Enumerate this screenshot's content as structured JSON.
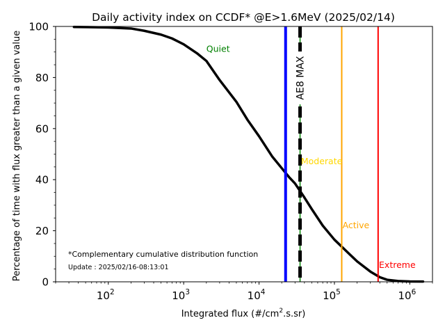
{
  "chart_data": {
    "type": "line",
    "title": "Daily activity index on CCDF* @E>1.6MeV (2025/02/14)",
    "xlabel_main": "Integrated flux (#/cm",
    "xlabel_sup": "2",
    "xlabel_tail": ".s.sr)",
    "ylabel": "Percentage of time with flux greater than a given value",
    "xscale": "log",
    "xlim": [
      20,
      2000000
    ],
    "ylim": [
      0,
      100
    ],
    "yticks": [
      0,
      20,
      40,
      60,
      80,
      100
    ],
    "ytick_labels": [
      "0",
      "20",
      "40",
      "60",
      "80",
      "100"
    ],
    "xticks": [
      100,
      1000,
      10000,
      100000,
      1000000
    ],
    "xtick_bases": [
      "10",
      "10",
      "10",
      "10",
      "10"
    ],
    "xtick_exps": [
      "2",
      "3",
      "4",
      "5",
      "6"
    ],
    "grid": false,
    "series": [
      {
        "name": "CCDF",
        "color": "#000000",
        "x": [
          35,
          100,
          200,
          300,
          500,
          700,
          1000,
          1500,
          2000,
          3000,
          5000,
          7000,
          10000,
          15000,
          20000,
          25000,
          30000,
          40000,
          50000,
          70000,
          100000,
          150000,
          200000,
          300000,
          400000,
          500000,
          700000,
          1000000,
          1500000
        ],
        "y": [
          99.8,
          99.6,
          99.2,
          98.3,
          96.8,
          95.3,
          93.0,
          89.5,
          86.5,
          79.0,
          70.5,
          63.5,
          57.0,
          49.0,
          44.5,
          41.0,
          38.5,
          33.0,
          28.5,
          22.0,
          16.5,
          11.5,
          8.0,
          4.0,
          1.8,
          0.8,
          0.3,
          0.15,
          0.1
        ]
      }
    ],
    "vlines": [
      {
        "name": "daily-flux",
        "x": 22500,
        "color": "#0000ff",
        "style": "solid",
        "width": "thick"
      },
      {
        "name": "ae8-max",
        "x": 35000,
        "color": "#000000",
        "style": "dashed",
        "overlay_color": "#008000",
        "label": "AE8 MAX"
      },
      {
        "name": "active-threshold",
        "x": 125000,
        "color": "#ffa500",
        "style": "solid"
      },
      {
        "name": "extreme-threshold",
        "x": 380000,
        "color": "#ff0000",
        "style": "solid"
      }
    ],
    "annotations": [
      {
        "text": "Quiet",
        "color": "#008000",
        "x": 2000,
        "y": 90
      },
      {
        "text": "Moderate",
        "color": "#ffd700",
        "x": 36000,
        "y": 46
      },
      {
        "text": "Active",
        "color": "#ffa500",
        "x": 128000,
        "y": 21
      },
      {
        "text": "Extreme",
        "color": "#ff0000",
        "x": 390000,
        "y": 5.5
      }
    ],
    "footnote": "*Complementary cumulative distribution function",
    "update": "Update : 2025/02/16-08:13:01"
  }
}
